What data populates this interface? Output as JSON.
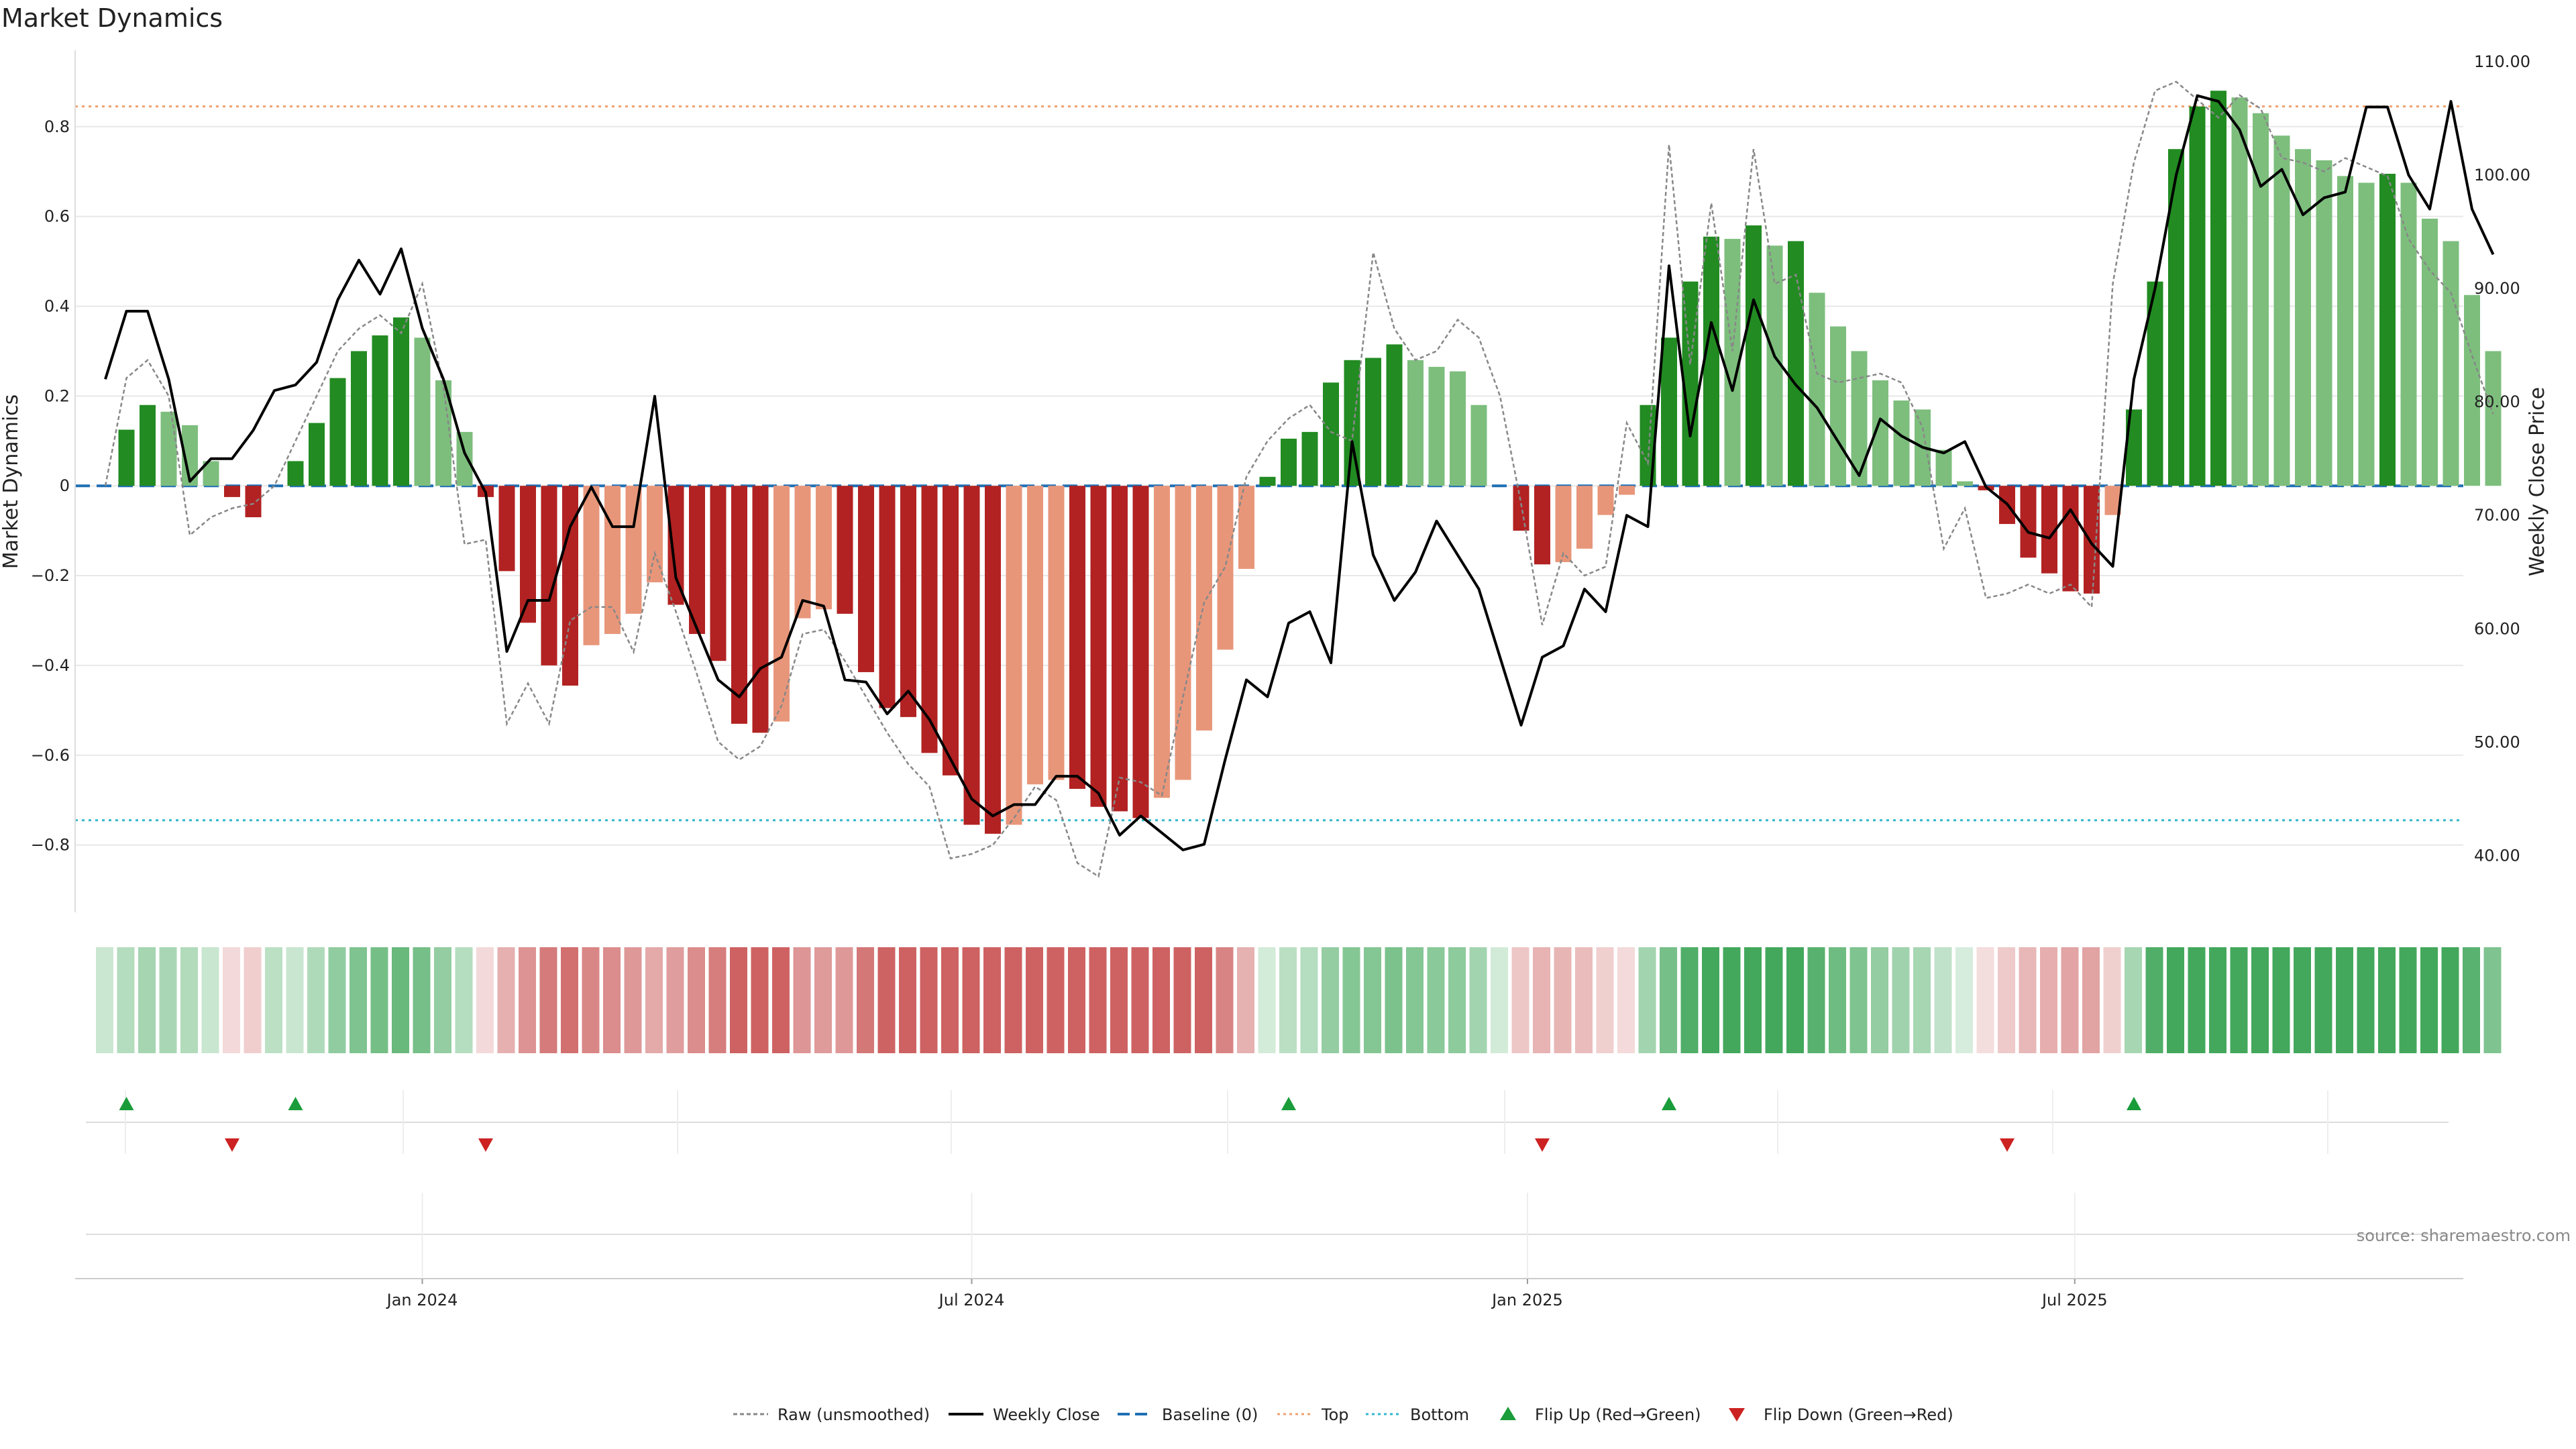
{
  "chart_data": {
    "type": "bar",
    "title": "Market Dynamics",
    "ylabel": "Market Dynamics",
    "y2label": "Weekly Close Price",
    "ylim": [
      -0.95,
      0.97
    ],
    "y2lim": [
      35.0,
      111.0
    ],
    "yticks": [
      "0.8",
      "0.6",
      "0.4",
      "0.2",
      "0",
      "−0.2",
      "−0.4",
      "−0.6",
      "−0.8"
    ],
    "ytick_values": [
      0.8,
      0.6,
      0.4,
      0.2,
      0,
      -0.2,
      -0.4,
      -0.6,
      -0.8
    ],
    "y2ticks": [
      "110.00",
      "100.00",
      "90.00",
      "80.00",
      "70.00",
      "60.00",
      "50.00",
      "40.00"
    ],
    "y2tick_values": [
      110,
      100,
      90,
      80,
      70,
      60,
      50,
      40
    ],
    "xticks": [
      {
        "label": "Jan 2024",
        "index": 15
      },
      {
        "label": "Jul 2024",
        "index": 41
      },
      {
        "label": "Jan 2025",
        "index": 67.3
      },
      {
        "label": "Jul 2025",
        "index": 93.2
      }
    ],
    "top_threshold": 0.845,
    "bottom_threshold": -0.745,
    "bars": [
      0,
      0.125,
      0.18,
      0.165,
      0.135,
      0.055,
      -0.025,
      -0.07,
      0,
      0.055,
      0.14,
      0.24,
      0.3,
      0.335,
      0.375,
      0.33,
      0.235,
      0.12,
      -0.025,
      -0.19,
      -0.305,
      -0.4,
      -0.445,
      -0.355,
      -0.33,
      -0.285,
      -0.215,
      -0.265,
      -0.33,
      -0.39,
      -0.53,
      -0.55,
      -0.525,
      -0.295,
      -0.275,
      -0.285,
      -0.415,
      -0.495,
      -0.515,
      -0.595,
      -0.645,
      -0.755,
      -0.775,
      -0.755,
      -0.665,
      -0.655,
      -0.675,
      -0.715,
      -0.725,
      -0.74,
      -0.695,
      -0.655,
      -0.545,
      -0.365,
      -0.185,
      0.02,
      0.105,
      0.12,
      0.23,
      0.28,
      0.285,
      0.315,
      0.28,
      0.265,
      0.255,
      0.18,
      0,
      -0.1,
      -0.175,
      -0.17,
      -0.14,
      -0.065,
      -0.02,
      0.18,
      0.33,
      0.455,
      0.555,
      0.55,
      0.58,
      0.535,
      0.545,
      0.43,
      0.355,
      0.3,
      0.235,
      0.19,
      0.17,
      0.08,
      0.01,
      -0.01,
      -0.085,
      -0.16,
      -0.195,
      -0.235,
      -0.24,
      -0.065,
      0.17,
      0.455,
      0.75,
      0.845,
      0.88,
      0.865,
      0.83,
      0.78,
      0.75,
      0.725,
      0.69,
      0.675,
      0.695,
      0.675,
      0.595,
      0.545,
      0.425,
      0.3
    ],
    "bar_strength": [
      "strong",
      "strong",
      "strong",
      "weak",
      "weak",
      "weak",
      "strong",
      "strong",
      "weak",
      "strong",
      "strong",
      "strong",
      "strong",
      "strong",
      "strong",
      "weak",
      "weak",
      "weak",
      "strong",
      "strong",
      "strong",
      "strong",
      "strong",
      "weak",
      "weak",
      "weak",
      "weak",
      "strong",
      "strong",
      "strong",
      "strong",
      "strong",
      "weak",
      "weak",
      "weak",
      "strong",
      "strong",
      "strong",
      "strong",
      "strong",
      "strong",
      "strong",
      "strong",
      "weak",
      "weak",
      "weak",
      "strong",
      "strong",
      "strong",
      "strong",
      "weak",
      "weak",
      "weak",
      "weak",
      "weak",
      "strong",
      "strong",
      "strong",
      "strong",
      "strong",
      "strong",
      "strong",
      "weak",
      "weak",
      "weak",
      "weak",
      "strong",
      "strong",
      "strong",
      "weak",
      "weak",
      "weak",
      "weak",
      "strong",
      "strong",
      "strong",
      "strong",
      "weak",
      "strong",
      "weak",
      "strong",
      "weak",
      "weak",
      "weak",
      "weak",
      "weak",
      "weak",
      "weak",
      "weak",
      "strong",
      "strong",
      "strong",
      "strong",
      "strong",
      "strong",
      "weak",
      "strong",
      "strong",
      "strong",
      "strong",
      "strong",
      "weak",
      "weak",
      "weak",
      "weak",
      "weak",
      "weak",
      "weak",
      "strong",
      "weak",
      "weak",
      "weak",
      "weak",
      "weak"
    ],
    "raw": [
      0,
      0.24,
      0.28,
      0.2,
      -0.11,
      -0.07,
      -0.05,
      -0.04,
      0,
      0.1,
      0.2,
      0.3,
      0.35,
      0.38,
      0.34,
      0.45,
      0.22,
      -0.13,
      -0.12,
      -0.53,
      -0.44,
      -0.53,
      -0.3,
      -0.27,
      -0.27,
      -0.37,
      -0.15,
      -0.28,
      -0.42,
      -0.57,
      -0.61,
      -0.58,
      -0.49,
      -0.33,
      -0.32,
      -0.39,
      -0.47,
      -0.55,
      -0.62,
      -0.67,
      -0.83,
      -0.82,
      -0.8,
      -0.74,
      -0.67,
      -0.7,
      -0.84,
      -0.87,
      -0.65,
      -0.66,
      -0.69,
      -0.47,
      -0.26,
      -0.18,
      0.02,
      0.1,
      0.15,
      0.18,
      0.12,
      0.1,
      0.52,
      0.35,
      0.28,
      0.3,
      0.37,
      0.33,
      0.2,
      -0.04,
      -0.31,
      -0.15,
      -0.2,
      -0.18,
      0.14,
      0.05,
      0.76,
      0.27,
      0.63,
      0.3,
      0.75,
      0.45,
      0.47,
      0.25,
      0.23,
      0.24,
      0.25,
      0.23,
      0.13,
      -0.14,
      -0.05,
      -0.25,
      -0.24,
      -0.22,
      -0.24,
      -0.22,
      -0.27,
      0.45,
      0.72,
      0.88,
      0.9,
      0.86,
      0.82,
      0.87,
      0.84,
      0.73,
      0.72,
      0.7,
      0.73,
      0.71,
      0.69,
      0.55,
      0.48,
      0.43,
      0.29,
      0.16
    ],
    "close": [
      82,
      88,
      88,
      82,
      73,
      75,
      75,
      77.5,
      81,
      81.5,
      83.5,
      89,
      92.5,
      89.5,
      93.5,
      86.5,
      82,
      75.5,
      72,
      58,
      62.5,
      62.5,
      69,
      72.5,
      69,
      69,
      80.5,
      64.5,
      60,
      55.5,
      54,
      56.5,
      57.5,
      62.5,
      62,
      55.5,
      55.3,
      52.5,
      54.5,
      52,
      48.5,
      45,
      43.5,
      44.5,
      44.5,
      47,
      47,
      45.5,
      41.8,
      43.5,
      42,
      40.5,
      41,
      48.5,
      55.5,
      54,
      60.5,
      61.5,
      57,
      76.5,
      66.5,
      62.5,
      65,
      69.5,
      66.5,
      63.5,
      57.5,
      51.5,
      57.5,
      58.5,
      63.5,
      61.5,
      70,
      69,
      92,
      77,
      87,
      81,
      89,
      84,
      81.5,
      79.5,
      76.5,
      73.5,
      78.5,
      77,
      76,
      75.5,
      76.5,
      72.5,
      71,
      68.5,
      68,
      70.5,
      67.5,
      65.5,
      82,
      90,
      100,
      107,
      106.5,
      104,
      99,
      100.5,
      96.5,
      98,
      98.5,
      106,
      106,
      100,
      97,
      106.5,
      97,
      93
    ]
  },
  "heatstrip_levels": [
    0.1,
    0.25,
    0.35,
    0.32,
    0.27,
    0.11,
    0.05,
    0.14,
    0.2,
    0.11,
    0.28,
    0.48,
    0.6,
    0.67,
    0.75,
    0.66,
    0.47,
    0.24,
    0.05,
    0.38,
    0.61,
    0.8,
    0.89,
    0.71,
    0.66,
    0.57,
    0.43,
    0.53,
    0.66,
    0.78,
    1.0,
    1.0,
    1.0,
    0.59,
    0.55,
    0.57,
    0.83,
    0.99,
    1.0,
    1.0,
    1.0,
    1.0,
    1.0,
    1.0,
    1.0,
    1.0,
    1.0,
    1.0,
    1.0,
    1.0,
    1.0,
    1.0,
    1.0,
    0.73,
    0.37,
    0.04,
    0.21,
    0.24,
    0.46,
    0.56,
    0.57,
    0.63,
    0.56,
    0.53,
    0.51,
    0.36,
    0.05,
    0.2,
    0.35,
    0.34,
    0.28,
    0.13,
    0.04,
    0.36,
    0.66,
    0.91,
    1.0,
    1.0,
    1.0,
    1.0,
    1.0,
    0.86,
    0.71,
    0.6,
    0.47,
    0.38,
    0.34,
    0.16,
    0.02,
    0.02,
    0.17,
    0.32,
    0.39,
    0.47,
    0.48,
    0.13,
    0.34,
    0.91,
    1.0,
    1.0,
    1.0,
    1.0,
    1.0,
    1.0,
    1.0,
    1.0,
    1.0,
    1.0,
    1.0,
    1.0,
    1.0,
    1.0,
    0.85,
    0.6
  ],
  "flips_up": [
    1,
    9,
    56,
    74,
    96
  ],
  "flips_down": [
    6,
    18,
    68,
    90
  ],
  "legend": {
    "raw": "Raw (unsmoothed)",
    "close": "Weekly Close",
    "baseline": "Baseline (0)",
    "top": "Top",
    "bottom": "Bottom",
    "flip_up": "Flip Up (Red→Green)",
    "flip_down": "Flip Down (Green→Red)"
  },
  "source": "source: sharemaestro.com",
  "colors": {
    "strong_green": "#228B22",
    "weak_green": "#7DBE7D",
    "strong_red": "#B22222",
    "weak_red": "#E8967A",
    "close_line": "#000000",
    "raw_line": "#888888",
    "baseline": "#1F6FB4",
    "top": "#F0A070",
    "bottom": "#30B8CC",
    "marker_up": "#1A9C3A",
    "marker_down": "#CC2222",
    "strip_green": "#2E9E4A",
    "strip_red": "#C85050",
    "grid": "#E8E8E8"
  }
}
